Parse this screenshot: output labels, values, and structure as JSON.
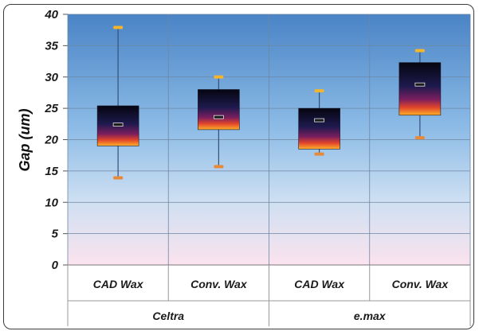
{
  "chart_data": {
    "type": "boxplot",
    "ylabel": "Gap (um)",
    "ylim": [
      0,
      40
    ],
    "y_ticks": [
      "0",
      "5",
      "10",
      "15",
      "20",
      "25",
      "30",
      "35",
      "40"
    ],
    "grid": true,
    "groups": [
      {
        "name": "Celtra",
        "categories": [
          "CAD Wax",
          "Conv. Wax"
        ]
      },
      {
        "name": "e.max",
        "categories": [
          "CAD Wax",
          "Conv. Wax"
        ]
      }
    ],
    "boxes": [
      {
        "group": "Celtra",
        "category": "CAD Wax",
        "max": 37.9,
        "q3": 25.4,
        "median": 22.4,
        "q1": 19.0,
        "min": 13.9
      },
      {
        "group": "Celtra",
        "category": "Conv. Wax",
        "max": 30.0,
        "q3": 28.0,
        "median": 23.6,
        "q1": 21.6,
        "min": 15.7
      },
      {
        "group": "e.max",
        "category": "CAD Wax",
        "max": 27.8,
        "q3": 25.0,
        "median": 23.1,
        "q1": 18.5,
        "min": 17.7
      },
      {
        "group": "e.max",
        "category": "Conv. Wax",
        "max": 34.2,
        "q3": 32.3,
        "median": 28.8,
        "q1": 23.9,
        "min": 20.3
      }
    ]
  }
}
